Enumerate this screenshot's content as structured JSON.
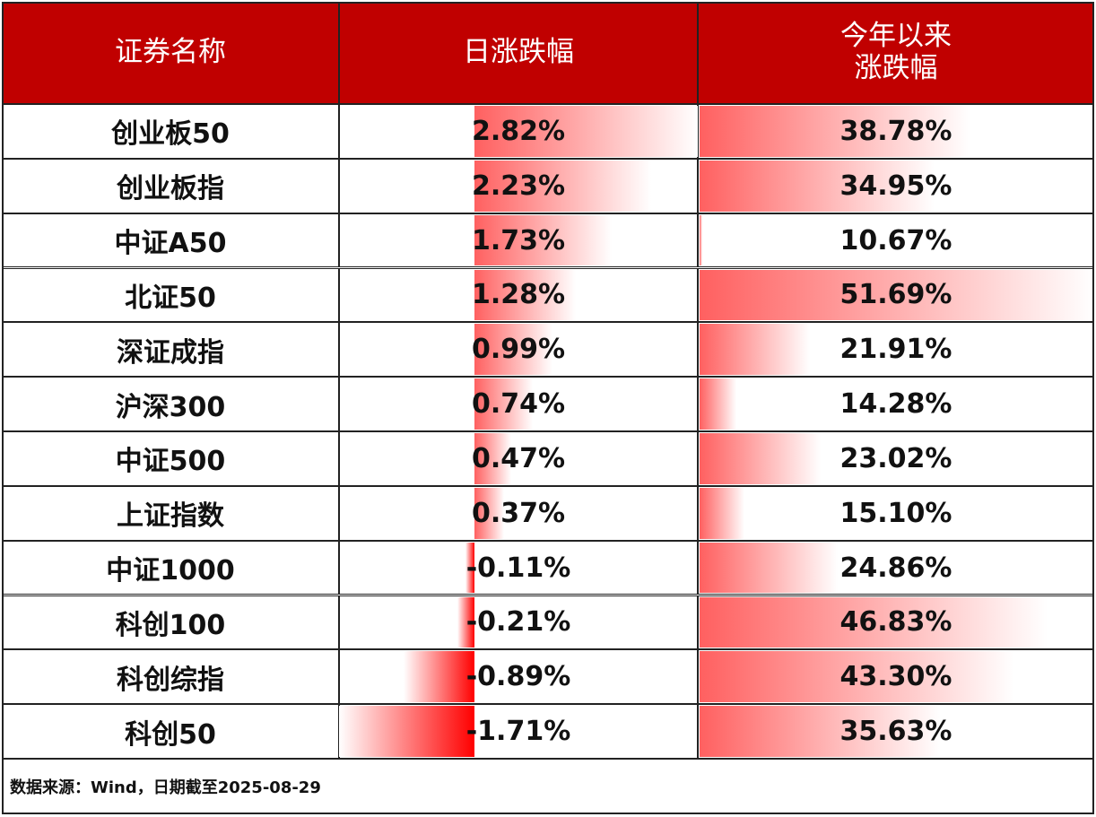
{
  "table": {
    "header": [
      "证券名称",
      "日涨跌幅",
      "今年以来涨跌幅"
    ],
    "rows": [
      [
        "创业板50",
        "2.82%",
        "38.78%"
      ],
      [
        "创业板指",
        "2.23%",
        "34.95%"
      ],
      [
        "中证A50",
        "1.73%",
        "10.67%"
      ],
      [
        "北证50",
        "1.28%",
        "51.69%"
      ],
      [
        "深证成指",
        "0.99%",
        "21.91%"
      ],
      [
        "沪深300",
        "0.74%",
        "14.28%"
      ],
      [
        "中证500",
        "0.47%",
        "23.02%"
      ],
      [
        "上证指数",
        "0.37%",
        "15.10%"
      ],
      [
        "中证1000",
        "-0.11%",
        "24.86%"
      ],
      [
        "科创100",
        "-0.21%",
        "46.83%"
      ],
      [
        "科创综指",
        "-0.89%",
        "43.30%"
      ],
      [
        "科创50",
        "-1.71%",
        "35.63%"
      ]
    ]
  },
  "footer": "数据来源：Wind，日期截至2025-08-29"
}
